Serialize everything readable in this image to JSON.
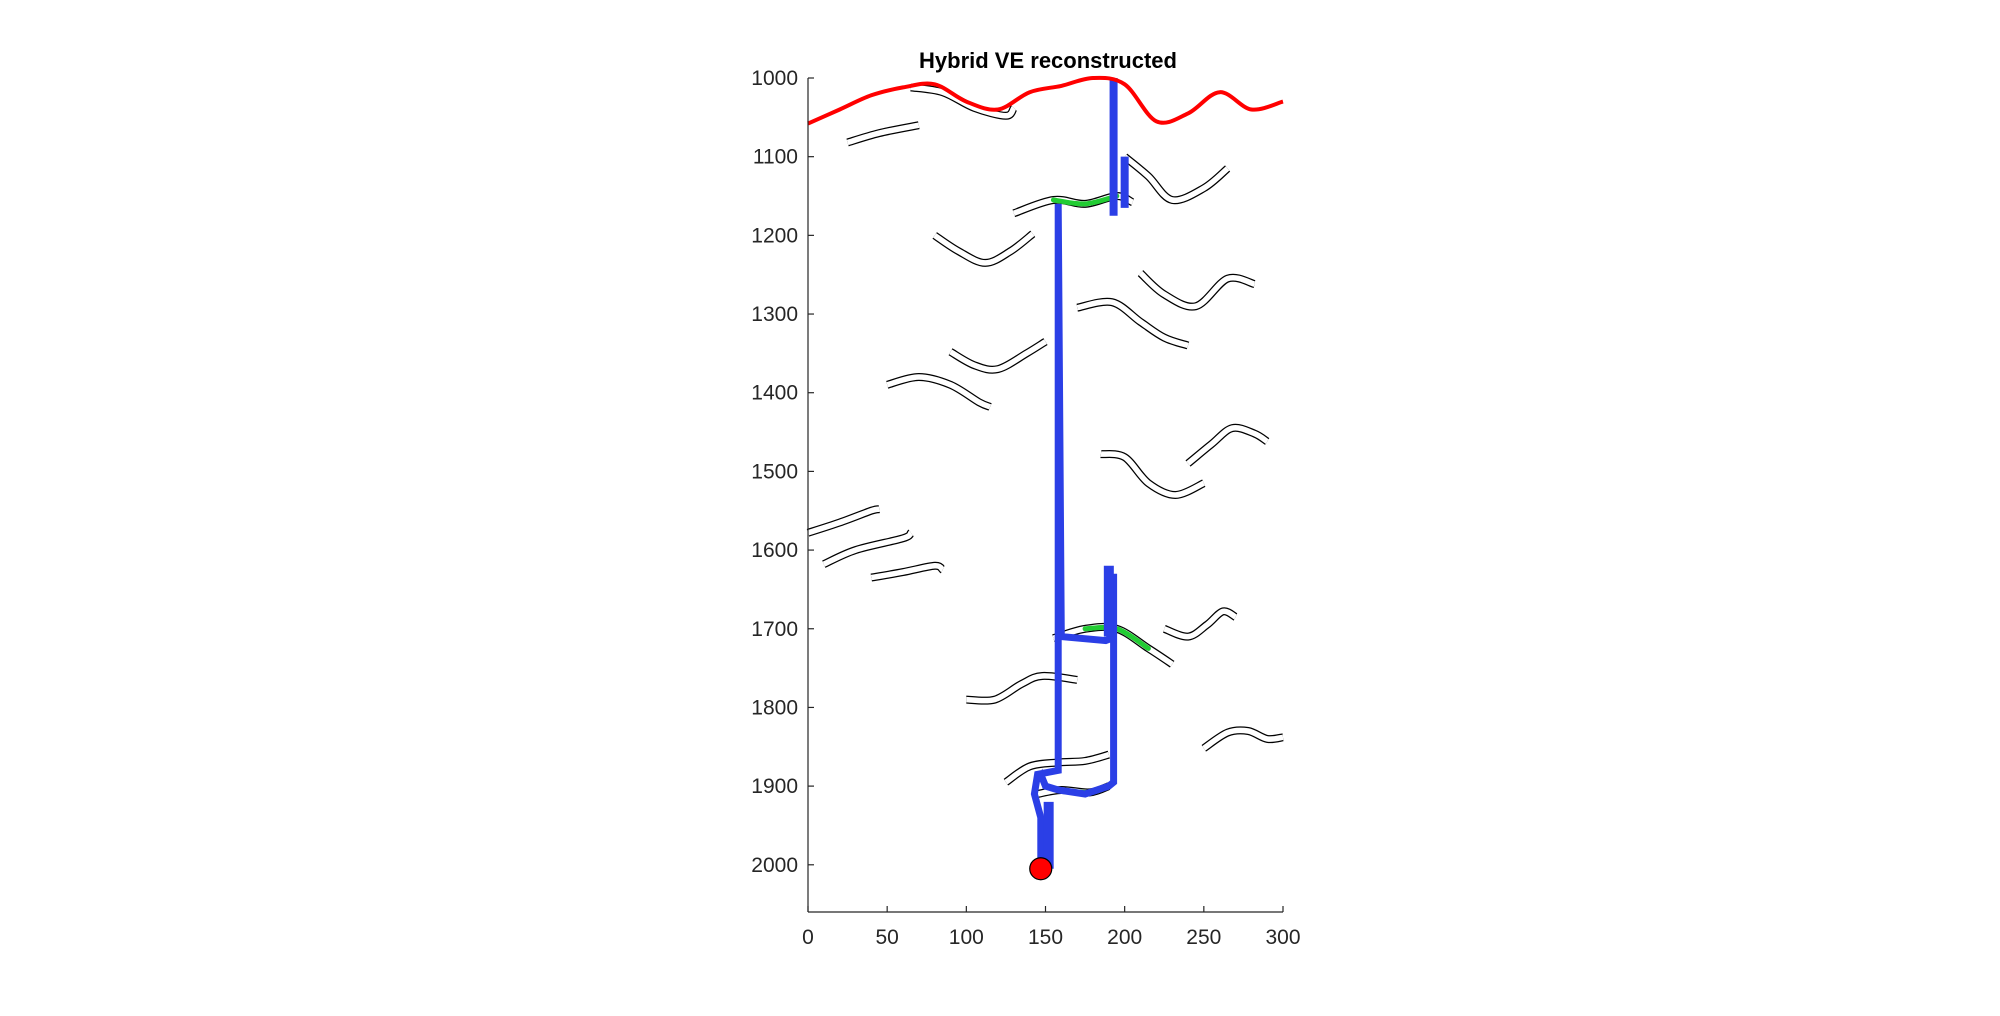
{
  "chart_data": {
    "type": "line",
    "title": "Hybrid VE reconstructed",
    "xlabel": "",
    "ylabel": "",
    "xlim": [
      0,
      300
    ],
    "ylim": [
      1000,
      2060
    ],
    "y_reversed": true,
    "x_ticks": [
      0,
      50,
      100,
      150,
      200,
      250,
      300
    ],
    "y_ticks": [
      1000,
      1100,
      1200,
      1300,
      1400,
      1500,
      1600,
      1700,
      1800,
      1900,
      2000
    ],
    "grid": false,
    "legend": "none",
    "colors": {
      "surface": "#ff0000",
      "wellbore": "#2b3fe6",
      "layers_fill": "#ffffff",
      "layers_edge": "#000000",
      "gas": "#22cc33",
      "source": "#ff0000"
    },
    "surface_curve": {
      "x": [
        0,
        20,
        40,
        60,
        80,
        100,
        120,
        140,
        160,
        180,
        200,
        220,
        240,
        260,
        280,
        300
      ],
      "y": [
        1058,
        1040,
        1022,
        1012,
        1008,
        1030,
        1040,
        1018,
        1010,
        1000,
        1008,
        1055,
        1045,
        1018,
        1040,
        1030
      ]
    },
    "wellbore_path": {
      "x": [
        147,
        147,
        143,
        145,
        158,
        158,
        158,
        160,
        188,
        192,
        193,
        193,
        193,
        193,
        190,
        175,
        158,
        150,
        148,
        147
      ],
      "y": [
        2005,
        1940,
        1910,
        1885,
        1880,
        1180,
        1160,
        1710,
        1715,
        1712,
        1700,
        1660,
        1630,
        1895,
        1900,
        1910,
        1905,
        1900,
        1890,
        1895
      ]
    },
    "source_marker": {
      "x": 147,
      "y": 2005
    },
    "layers": [
      {
        "x": [
          65,
          85,
          105,
          125,
          130
        ],
        "y": [
          1012,
          1018,
          1038,
          1048,
          1038
        ],
        "gas": false
      },
      {
        "x": [
          25,
          45,
          70
        ],
        "y": [
          1082,
          1070,
          1060
        ],
        "gas": false
      },
      {
        "x": [
          130,
          155,
          175,
          195,
          205
        ],
        "y": [
          1172,
          1155,
          1160,
          1150,
          1158
        ],
        "gas": true
      },
      {
        "x": [
          200,
          215,
          230,
          250,
          265
        ],
        "y": [
          1100,
          1125,
          1155,
          1140,
          1115
        ],
        "gas": false
      },
      {
        "x": [
          80,
          95,
          112,
          128,
          142
        ],
        "y": [
          1200,
          1220,
          1235,
          1220,
          1198
        ],
        "gas": false
      },
      {
        "x": [
          170,
          192,
          210,
          225,
          240
        ],
        "y": [
          1292,
          1285,
          1310,
          1330,
          1340
        ],
        "gas": false
      },
      {
        "x": [
          210,
          225,
          245,
          265,
          282
        ],
        "y": [
          1248,
          1275,
          1290,
          1255,
          1262
        ],
        "gas": false
      },
      {
        "x": [
          90,
          105,
          120,
          138,
          150
        ],
        "y": [
          1348,
          1365,
          1370,
          1350,
          1335
        ],
        "gas": false
      },
      {
        "x": [
          50,
          70,
          90,
          108,
          115
        ],
        "y": [
          1390,
          1380,
          1390,
          1412,
          1418
        ],
        "gas": false
      },
      {
        "x": [
          185,
          200,
          215,
          232,
          250
        ],
        "y": [
          1478,
          1482,
          1515,
          1530,
          1515
        ],
        "gas": false
      },
      {
        "x": [
          240,
          255,
          268,
          282,
          290
        ],
        "y": [
          1490,
          1465,
          1445,
          1452,
          1462
        ],
        "gas": false
      },
      {
        "x": [
          0,
          20,
          40,
          45
        ],
        "y": [
          1578,
          1565,
          1550,
          1548
        ],
        "gas": false
      },
      {
        "x": [
          10,
          30,
          60,
          65
        ],
        "y": [
          1618,
          1600,
          1585,
          1578
        ],
        "gas": false
      },
      {
        "x": [
          40,
          60,
          80,
          85
        ],
        "y": [
          1635,
          1628,
          1620,
          1625
        ],
        "gas": false
      },
      {
        "x": [
          155,
          175,
          195,
          215,
          230
        ],
        "y": [
          1712,
          1700,
          1700,
          1725,
          1745
        ],
        "gas": true
      },
      {
        "x": [
          225,
          240,
          252,
          262,
          270
        ],
        "y": [
          1700,
          1710,
          1695,
          1678,
          1685
        ],
        "gas": false
      },
      {
        "x": [
          100,
          118,
          135,
          148,
          170
        ],
        "y": [
          1790,
          1790,
          1770,
          1760,
          1765
        ],
        "gas": false
      },
      {
        "x": [
          125,
          140,
          158,
          175,
          190
        ],
        "y": [
          1895,
          1875,
          1870,
          1868,
          1860
        ],
        "gas": false
      },
      {
        "x": [
          145,
          160,
          178,
          190
        ],
        "y": [
          1910,
          1905,
          1908,
          1900
        ],
        "gas": true
      },
      {
        "x": [
          250,
          265,
          278,
          290,
          300
        ],
        "y": [
          1852,
          1832,
          1830,
          1840,
          1838
        ],
        "gas": false
      }
    ]
  }
}
